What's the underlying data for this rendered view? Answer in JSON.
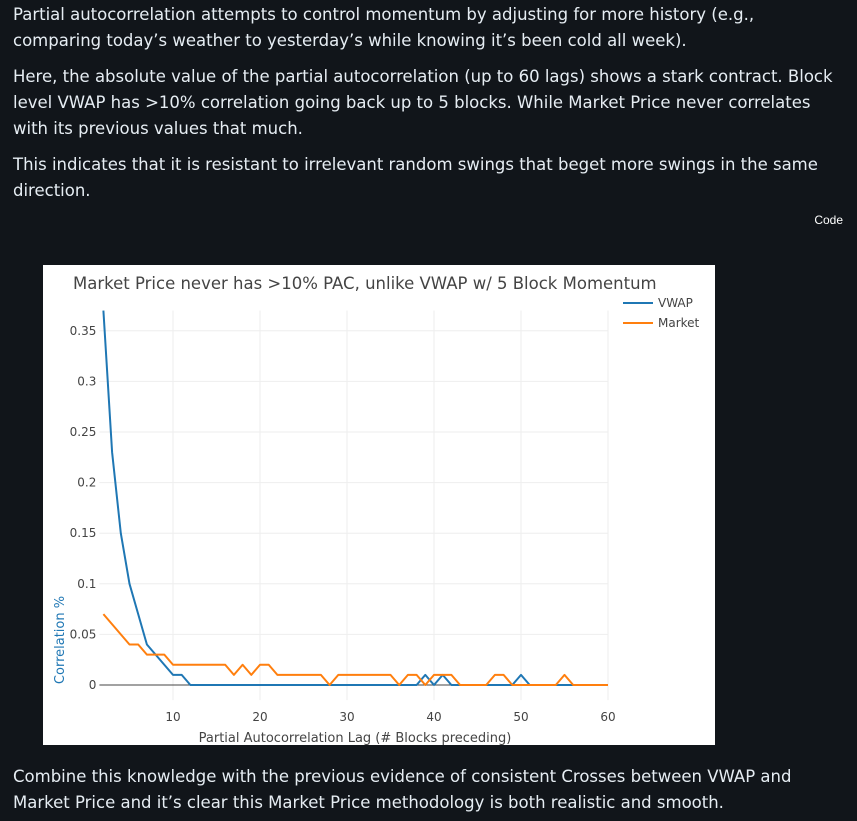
{
  "paragraphs": [
    "Partial autocorrelation attempts to control momentum by adjusting for more history (e.g., comparing today’s weather to yesterday’s while knowing it’s been cold all week).",
    "Here, the absolute value of the partial autocorrelation (up to 60 lags) shows a stark contract. Block level VWAP has >10% correlation going back up to 5 blocks. While Market Price never correlates with its previous values that much.",
    "This indicates that it is resistant to irrelevant random swings that beget more swings in the same direction.",
    "Combine this knowledge with the previous evidence of consistent Crosses between VWAP and Market Price and it’s clear this Market Price methodology is both realistic and smooth."
  ],
  "code_button": "Code",
  "chart_data": {
    "type": "line",
    "title": "Market Price never has >10% PAC, unlike VWAP w/ 5 Block Momentum",
    "xlabel": "Partial Autocorrelation Lag (# Blocks preceding)",
    "ylabel": "Correlation %",
    "xlim": [
      2,
      60
    ],
    "ylim": [
      -0.015,
      0.37
    ],
    "xticks": [
      10,
      20,
      30,
      40,
      50,
      60
    ],
    "yticks": [
      0,
      0.05,
      0.1,
      0.15,
      0.2,
      0.25,
      0.3,
      0.35
    ],
    "ytick_labels": [
      "0",
      "0.05",
      "0.1",
      "0.15",
      "0.2",
      "0.25",
      "0.3",
      "0.35"
    ],
    "grid": true,
    "legend": "top-right",
    "series": [
      {
        "name": "VWAP",
        "color": "#1f77b4",
        "x_start": 2,
        "values": [
          0.37,
          0.23,
          0.15,
          0.1,
          0.07,
          0.04,
          0.03,
          0.02,
          0.01,
          0.01,
          0,
          0,
          0,
          0,
          0,
          0,
          0,
          0,
          0,
          0,
          0,
          0,
          0,
          0,
          0,
          0,
          0,
          0,
          0,
          0,
          0,
          0,
          0,
          0,
          0,
          0,
          0,
          0.01,
          0,
          0.01,
          0,
          0,
          0,
          0,
          0,
          0,
          0,
          0,
          0.01,
          0,
          0,
          0,
          0,
          0,
          0,
          0,
          0,
          0,
          0
        ]
      },
      {
        "name": "Market",
        "color": "#ff7f0e",
        "x_start": 2,
        "values": [
          0.07,
          0.06,
          0.05,
          0.04,
          0.04,
          0.03,
          0.03,
          0.03,
          0.02,
          0.02,
          0.02,
          0.02,
          0.02,
          0.02,
          0.02,
          0.01,
          0.02,
          0.01,
          0.02,
          0.02,
          0.01,
          0.01,
          0.01,
          0.01,
          0.01,
          0.01,
          0,
          0.01,
          0.01,
          0.01,
          0.01,
          0.01,
          0.01,
          0.01,
          0,
          0.01,
          0.01,
          0,
          0.01,
          0.01,
          0.01,
          0,
          0,
          0,
          0,
          0.01,
          0.01,
          0,
          0,
          0,
          0,
          0,
          0,
          0.01,
          0,
          0,
          0,
          0,
          0
        ]
      }
    ]
  }
}
